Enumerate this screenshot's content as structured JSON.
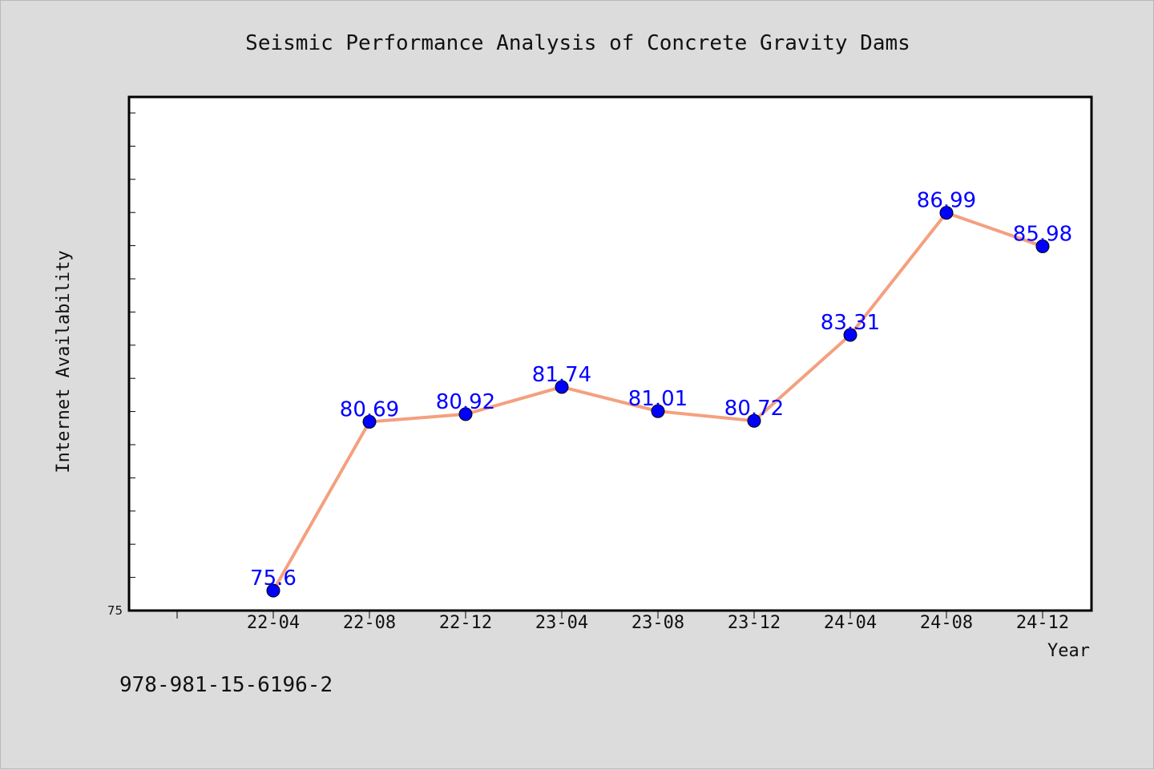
{
  "chart_data": {
    "type": "line",
    "title": "Seismic Performance Analysis of Concrete Gravity Dams",
    "xlabel": "Year",
    "ylabel": "Internet Availability",
    "categories": [
      "22-04",
      "22-08",
      "22-12",
      "23-04",
      "23-08",
      "23-12",
      "24-04",
      "24-08",
      "24-12"
    ],
    "series": [
      {
        "values": [
          75.6,
          80.69,
          80.92,
          81.74,
          81.01,
          80.72,
          83.31,
          86.99,
          85.98
        ]
      }
    ],
    "ylim": [
      75,
      90
    ],
    "ytick_labels": [
      "75"
    ],
    "grid": false,
    "legend": "none",
    "colors": {
      "line": "#f4a07f",
      "marker": "#0000ff",
      "label": "#0000ff"
    }
  },
  "footer": {
    "isbn": "978-981-15-6196-2"
  }
}
